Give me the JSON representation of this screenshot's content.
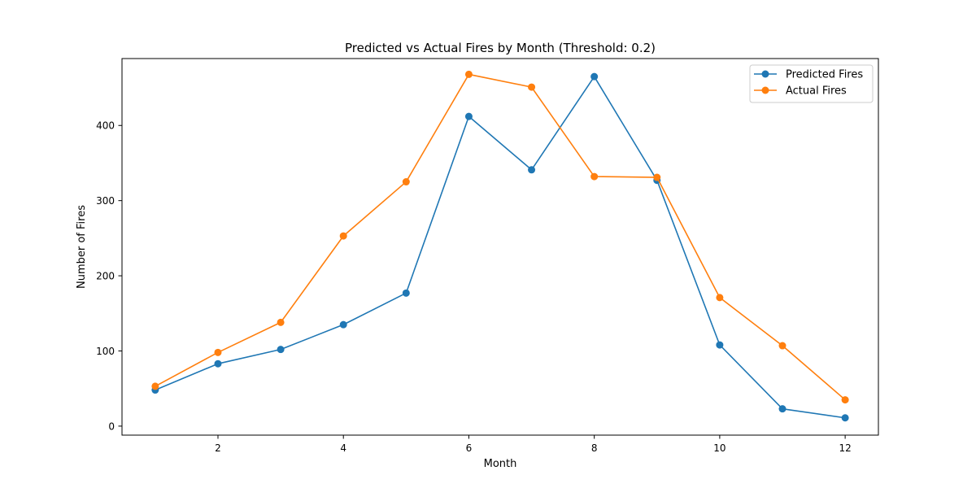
{
  "chart_data": {
    "type": "line",
    "title": "Predicted vs Actual Fires by Month (Threshold: 0.2)",
    "xlabel": "Month",
    "ylabel": "Number of Fires",
    "x": [
      1,
      2,
      3,
      4,
      5,
      6,
      7,
      8,
      9,
      10,
      11,
      12
    ],
    "xlim": [
      0.47,
      12.53
    ],
    "ylim": [
      -12,
      489
    ],
    "xticks": [
      2,
      4,
      6,
      8,
      10,
      12
    ],
    "yticks": [
      0,
      100,
      200,
      300,
      400
    ],
    "grid": false,
    "legend_position": "top-right",
    "series": [
      {
        "name": "Predicted Fires",
        "color": "#1f77b4",
        "marker": "circle",
        "values": [
          48,
          83,
          102,
          135,
          177,
          412,
          341,
          465,
          327,
          108,
          23,
          11
        ]
      },
      {
        "name": "Actual Fires",
        "color": "#ff7f0e",
        "marker": "circle",
        "values": [
          53,
          98,
          138,
          253,
          325,
          468,
          451,
          332,
          331,
          171,
          107,
          35
        ]
      }
    ]
  }
}
